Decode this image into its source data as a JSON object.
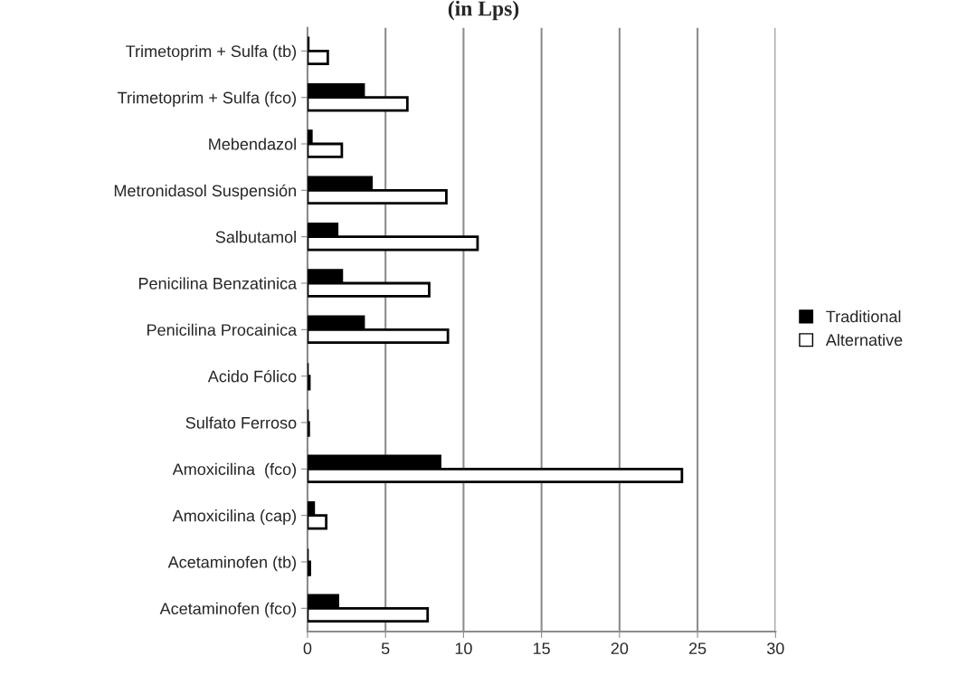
{
  "chart_data": {
    "type": "bar",
    "orientation": "horizontal",
    "title": "(in Lps)",
    "categories": [
      "Trimetoprim + Sulfa (tb)",
      "Trimetoprim + Sulfa (fco)",
      "Mebendazol",
      "Metronidasol Suspensión",
      "Salbutamol",
      "Penicilina Benzatinica",
      "Penicilina Procainica",
      "Acido Fólico",
      "Sulfato Ferroso",
      "Amoxicilina  (fco)",
      "Amoxicilina (cap)",
      "Acetaminofen (tb)",
      "Acetaminofen (fco)"
    ],
    "series": [
      {
        "name": "Traditional",
        "color": "#000000",
        "values": [
          0.05,
          3.6,
          0.25,
          4.1,
          1.9,
          2.2,
          3.6,
          0,
          0,
          8.5,
          0.4,
          0,
          1.95
        ]
      },
      {
        "name": "Alternative",
        "color": "#ffffff",
        "values": [
          1.3,
          6.4,
          2.2,
          8.9,
          10.9,
          7.8,
          9.0,
          0.12,
          0.08,
          24.0,
          1.2,
          0.15,
          7.7
        ]
      }
    ],
    "xlim": [
      0,
      30
    ],
    "xticks": [
      0,
      5,
      10,
      15,
      20,
      25,
      30
    ],
    "grid": "x",
    "legend": "right"
  }
}
